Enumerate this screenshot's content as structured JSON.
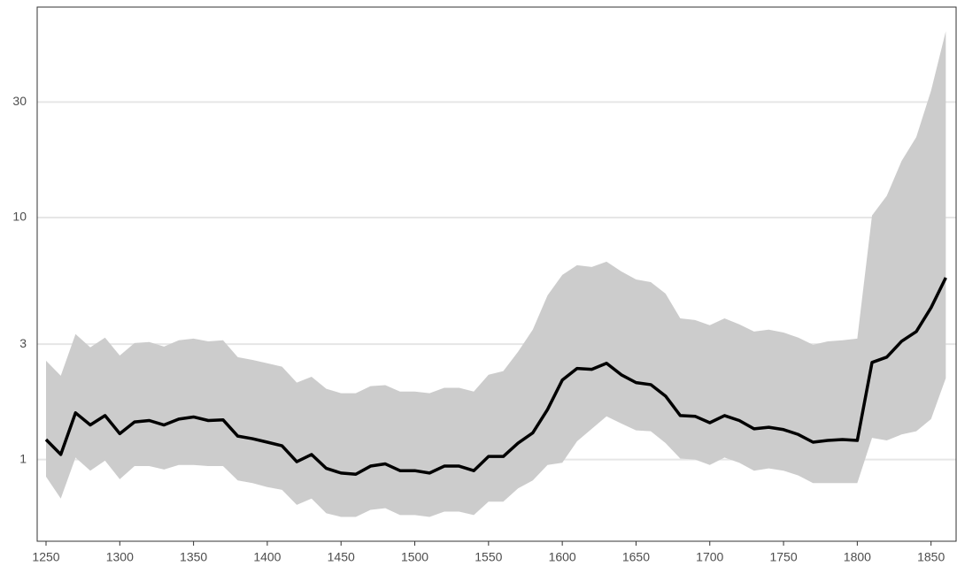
{
  "chart_data": {
    "type": "line",
    "x": [
      1250,
      1260,
      1270,
      1280,
      1290,
      1300,
      1310,
      1320,
      1330,
      1340,
      1350,
      1360,
      1370,
      1380,
      1390,
      1400,
      1410,
      1420,
      1430,
      1440,
      1450,
      1460,
      1470,
      1480,
      1490,
      1500,
      1510,
      1520,
      1530,
      1540,
      1550,
      1560,
      1570,
      1580,
      1590,
      1600,
      1610,
      1620,
      1630,
      1640,
      1650,
      1660,
      1670,
      1680,
      1690,
      1700,
      1710,
      1720,
      1730,
      1740,
      1750,
      1760,
      1770,
      1780,
      1790,
      1800,
      1810,
      1820,
      1830,
      1840,
      1850,
      1860
    ],
    "series": [
      {
        "color": "#000000",
        "band_color": "#cccccc",
        "values": [
          1.21,
          1.05,
          1.56,
          1.39,
          1.52,
          1.28,
          1.43,
          1.45,
          1.39,
          1.47,
          1.5,
          1.45,
          1.46,
          1.25,
          1.22,
          1.18,
          1.14,
          0.98,
          1.05,
          0.92,
          0.88,
          0.87,
          0.94,
          0.96,
          0.9,
          0.9,
          0.88,
          0.94,
          0.94,
          0.9,
          1.03,
          1.03,
          1.17,
          1.29,
          1.61,
          2.13,
          2.38,
          2.36,
          2.5,
          2.24,
          2.08,
          2.04,
          1.83,
          1.52,
          1.51,
          1.42,
          1.52,
          1.45,
          1.34,
          1.36,
          1.33,
          1.27,
          1.18,
          1.2,
          1.21,
          1.2,
          2.52,
          2.65,
          3.08,
          3.38,
          4.24,
          5.64
        ],
        "upper": [
          2.56,
          2.22,
          3.3,
          2.91,
          3.19,
          2.69,
          3.03,
          3.06,
          2.93,
          3.11,
          3.16,
          3.08,
          3.11,
          2.65,
          2.58,
          2.5,
          2.42,
          2.08,
          2.2,
          1.96,
          1.88,
          1.88,
          2.01,
          2.03,
          1.91,
          1.91,
          1.88,
          1.98,
          1.98,
          1.91,
          2.24,
          2.32,
          2.79,
          3.44,
          4.77,
          5.79,
          6.35,
          6.25,
          6.57,
          5.99,
          5.55,
          5.41,
          4.85,
          3.83,
          3.77,
          3.59,
          3.83,
          3.62,
          3.38,
          3.44,
          3.35,
          3.19,
          2.98,
          3.08,
          3.11,
          3.16,
          10.2,
          12.3,
          17.1,
          21.5,
          33.4,
          58.8
        ],
        "lower": [
          0.85,
          0.69,
          1.02,
          0.9,
          0.99,
          0.83,
          0.94,
          0.94,
          0.91,
          0.95,
          0.95,
          0.94,
          0.94,
          0.82,
          0.8,
          0.77,
          0.75,
          0.65,
          0.69,
          0.6,
          0.58,
          0.58,
          0.62,
          0.63,
          0.59,
          0.59,
          0.58,
          0.61,
          0.61,
          0.59,
          0.67,
          0.67,
          0.76,
          0.82,
          0.95,
          0.97,
          1.19,
          1.34,
          1.51,
          1.41,
          1.32,
          1.31,
          1.17,
          1.01,
          1.0,
          0.95,
          1.02,
          0.97,
          0.9,
          0.92,
          0.9,
          0.86,
          0.8,
          0.8,
          0.8,
          0.8,
          1.23,
          1.2,
          1.27,
          1.31,
          1.47,
          2.17
        ]
      }
    ],
    "xlim": [
      1244,
      1867
    ],
    "xticks": [
      1250,
      1300,
      1350,
      1400,
      1450,
      1500,
      1550,
      1600,
      1650,
      1700,
      1750,
      1800,
      1850
    ],
    "ylim": [
      0.46,
      74
    ],
    "yticks": [
      1,
      3,
      10,
      30
    ],
    "ylog": true,
    "grid": true
  }
}
